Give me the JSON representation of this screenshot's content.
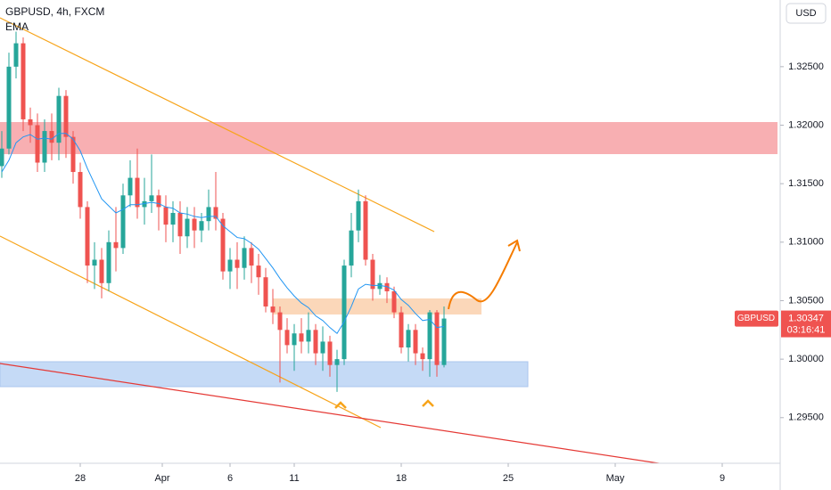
{
  "chart_data": {
    "type": "candlestick",
    "title": "GBPUSD, 4h, FXCM",
    "currency": "USD",
    "up_color": "#26a69a",
    "down_color": "#ef5350",
    "x": [
      0,
      1,
      2,
      3,
      4,
      5,
      6,
      7,
      8,
      9,
      10,
      11,
      12,
      13,
      14,
      15,
      16,
      17,
      18,
      19,
      20,
      21,
      22,
      23,
      24,
      25,
      26,
      27,
      28,
      29,
      30,
      31,
      32,
      33,
      34,
      35,
      36,
      37,
      38,
      39,
      40,
      41,
      42,
      43,
      44,
      45,
      46,
      47,
      48,
      49,
      50,
      51,
      52,
      53,
      54,
      55,
      56,
      57,
      58,
      59,
      60,
      61,
      62
    ],
    "open": [
      1.3165,
      1.318,
      1.325,
      1.327,
      1.3205,
      1.32,
      1.3168,
      1.3195,
      1.3185,
      1.3225,
      1.319,
      1.316,
      1.313,
      1.308,
      1.3085,
      1.3065,
      1.31,
      1.3095,
      1.314,
      1.3155,
      1.313,
      1.3135,
      1.314,
      1.313,
      1.3115,
      1.3125,
      1.3105,
      1.312,
      1.311,
      1.3118,
      1.313,
      1.312,
      1.3075,
      1.3085,
      1.3078,
      1.3095,
      1.308,
      1.307,
      1.3045,
      1.304,
      1.3025,
      1.3012,
      1.3022,
      1.3015,
      1.3025,
      1.3005,
      1.3015,
      1.2995,
      1.3,
      1.308,
      1.311,
      1.3135,
      1.3085,
      1.306,
      1.3065,
      1.3058,
      1.304,
      1.301,
      1.3025,
      1.3005,
      1.3,
      1.304,
      1.2995
    ],
    "high": [
      1.3195,
      1.3262,
      1.328,
      1.3275,
      1.3215,
      1.321,
      1.3205,
      1.321,
      1.3232,
      1.323,
      1.3195,
      1.3168,
      1.3135,
      1.31,
      1.3095,
      1.311,
      1.313,
      1.315,
      1.317,
      1.318,
      1.3155,
      1.3175,
      1.3145,
      1.314,
      1.3135,
      1.3135,
      1.313,
      1.313,
      1.3125,
      1.3145,
      1.316,
      1.3125,
      1.3095,
      1.31,
      1.3105,
      1.31,
      1.309,
      1.3078,
      1.306,
      1.3045,
      1.3035,
      1.303,
      1.3035,
      1.304,
      1.303,
      1.3028,
      1.302,
      1.3008,
      1.3085,
      1.3125,
      1.3145,
      1.314,
      1.309,
      1.3072,
      1.307,
      1.3062,
      1.3045,
      1.303,
      1.303,
      1.301,
      1.3042,
      1.3042,
      1.3045
    ],
    "low": [
      1.3155,
      1.3175,
      1.324,
      1.3195,
      1.3185,
      1.316,
      1.316,
      1.317,
      1.317,
      1.3172,
      1.315,
      1.312,
      1.3065,
      1.306,
      1.3052,
      1.3058,
      1.3075,
      1.309,
      1.313,
      1.312,
      1.3115,
      1.3125,
      1.311,
      1.31,
      1.31,
      1.309,
      1.3095,
      1.3095,
      1.31,
      1.311,
      1.311,
      1.3068,
      1.306,
      1.306,
      1.3068,
      1.3065,
      1.3055,
      1.304,
      1.303,
      1.298,
      1.3005,
      1.299,
      1.3005,
      1.3005,
      1.2995,
      1.299,
      1.2985,
      1.2972,
      1.2995,
      1.307,
      1.31,
      1.308,
      1.305,
      1.3055,
      1.3048,
      1.3035,
      1.3005,
      1.2998,
      1.2995,
      1.299,
      1.2985,
      1.2985,
      1.2993
    ],
    "close": [
      1.318,
      1.325,
      1.327,
      1.3205,
      1.32,
      1.3168,
      1.3195,
      1.3185,
      1.3225,
      1.319,
      1.316,
      1.313,
      1.308,
      1.3085,
      1.3065,
      1.31,
      1.3095,
      1.314,
      1.3155,
      1.313,
      1.3135,
      1.314,
      1.313,
      1.3115,
      1.3125,
      1.3105,
      1.312,
      1.311,
      1.3118,
      1.313,
      1.312,
      1.3075,
      1.3085,
      1.3078,
      1.3095,
      1.308,
      1.307,
      1.3045,
      1.304,
      1.3025,
      1.3012,
      1.3022,
      1.3015,
      1.3025,
      1.3005,
      1.3015,
      1.2995,
      1.3,
      1.308,
      1.311,
      1.3135,
      1.3085,
      1.306,
      1.3065,
      1.3058,
      1.304,
      1.301,
      1.3025,
      1.3005,
      1.3,
      1.304,
      1.2995,
      1.30347
    ],
    "series": [
      {
        "name": "EMA",
        "color": "#2196f3",
        "values": [
          1.316,
          1.317,
          1.3185,
          1.319,
          1.3192,
          1.3188,
          1.3189,
          1.3188,
          1.3193,
          1.3193,
          1.3188,
          1.3178,
          1.3163,
          1.315,
          1.3137,
          1.3131,
          1.3125,
          1.3128,
          1.3132,
          1.3132,
          1.3133,
          1.3134,
          1.3133,
          1.313,
          1.3129,
          1.3125,
          1.3124,
          1.3122,
          1.3121,
          1.3122,
          1.3122,
          1.3114,
          1.3109,
          1.3104,
          1.3103,
          1.3099,
          1.3094,
          1.3086,
          1.3078,
          1.3069,
          1.3061,
          1.3054,
          1.3048,
          1.3044,
          1.3037,
          1.3033,
          1.3027,
          1.3022,
          1.3032,
          1.3045,
          1.306,
          1.3064,
          1.3063,
          1.3063,
          1.3062,
          1.3059,
          1.3051,
          1.3046,
          1.3039,
          1.3033,
          1.3034,
          1.3027,
          1.3028
        ]
      }
    ],
    "xlim": [
      -0.25,
      109.125
    ],
    "ylim": [
      1.2911,
      1.3307
    ],
    "xticks": [
      {
        "value": 11,
        "label": "28"
      },
      {
        "value": 22.5,
        "label": "Apr"
      },
      {
        "value": 32,
        "label": "6"
      },
      {
        "value": 41,
        "label": "11"
      },
      {
        "value": 56,
        "label": "18"
      },
      {
        "value": 71,
        "label": "25"
      },
      {
        "value": 86,
        "label": "May"
      },
      {
        "value": 101,
        "label": "9"
      }
    ],
    "yticks": [
      {
        "value": 1.295,
        "label": "1.29500"
      },
      {
        "value": 1.3,
        "label": "1.30000"
      },
      {
        "value": 1.305,
        "label": "1.30500"
      },
      {
        "value": 1.31,
        "label": "1.31000"
      },
      {
        "value": 1.315,
        "label": "1.31500"
      },
      {
        "value": 1.32,
        "label": "1.32000"
      },
      {
        "value": 1.325,
        "label": "1.32500"
      }
    ],
    "last_price": {
      "symbol": "GBPUSD",
      "value": 1.30347,
      "countdown": "03:16:41"
    }
  }
}
